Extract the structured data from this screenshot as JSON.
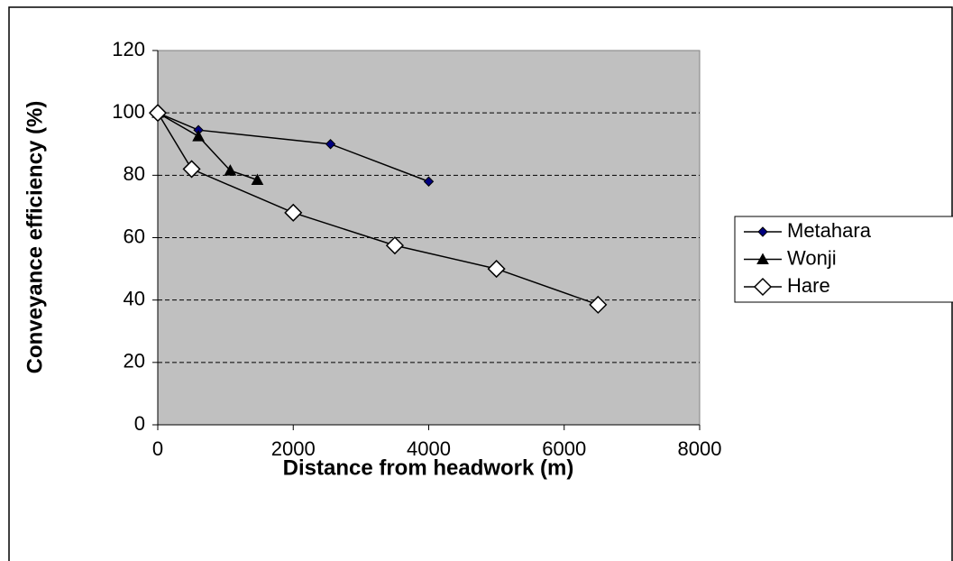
{
  "chart_data": {
    "type": "line",
    "xlabel": "Distance from headwork (m)",
    "ylabel": "Conveyance efficiency (%)",
    "xlim": [
      0,
      8000
    ],
    "xticks": [
      0,
      2000,
      4000,
      6000,
      8000
    ],
    "ylim": [
      0,
      120
    ],
    "yticks": [
      0,
      20,
      40,
      60,
      80,
      100,
      120
    ],
    "grid": true,
    "grid_style": "dashed",
    "plot_background": "#c0c0c0",
    "legend": "right",
    "series": [
      {
        "name": "Metahara",
        "color": "#000080",
        "marker": "diamond",
        "x": [
          0,
          600,
          2550,
          4000
        ],
        "values": [
          100,
          94.5,
          90,
          78
        ]
      },
      {
        "name": "Wonji",
        "color": "#000000",
        "marker": "triangle",
        "x": [
          0,
          600,
          1070,
          1470
        ],
        "values": [
          100,
          92.5,
          81.5,
          78.5
        ]
      },
      {
        "name": "Hare",
        "color": "#ffffff",
        "marker": "big-diamond",
        "x": [
          0,
          500,
          2000,
          3500,
          5000,
          6500
        ],
        "values": [
          100,
          82,
          68,
          57.5,
          50,
          38.5
        ]
      }
    ]
  }
}
